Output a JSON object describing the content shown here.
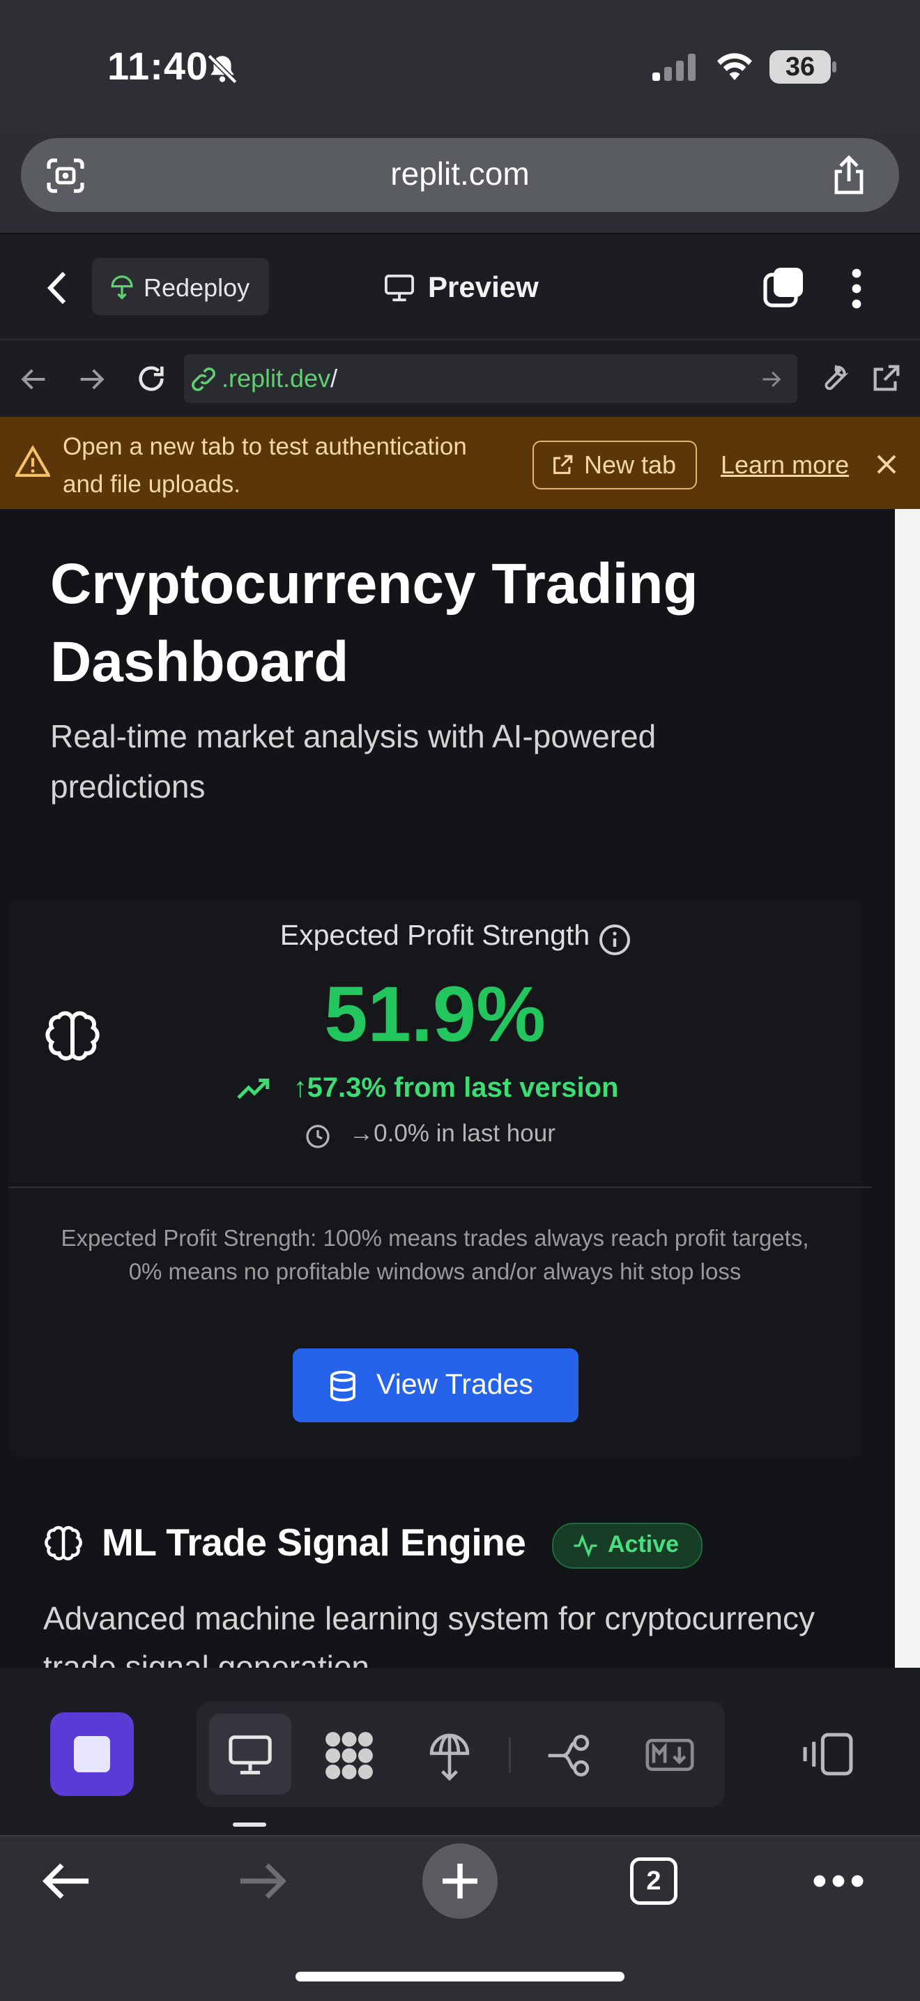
{
  "status_bar": {
    "time": "11:40",
    "battery": "36"
  },
  "browser": {
    "url": "replit.com",
    "tabs_count": "2"
  },
  "replit_header": {
    "redeploy": "Redeploy",
    "preview": "Preview"
  },
  "webview_nav": {
    "address": ".replit.dev",
    "address_slash": "/"
  },
  "banner": {
    "message": "Open a new tab to test authentication and file uploads.",
    "new_tab": "New tab",
    "learn_more": "Learn more"
  },
  "page": {
    "title": "Cryptocurrency Trading Dashboard",
    "subtitle": "Real-time market analysis with AI-powered predictions"
  },
  "profit_card": {
    "label": "Expected Profit Strength",
    "value": "51.9%",
    "change": "↑57.3% from last version",
    "hour_change": "→0.0% in last hour",
    "description": "Expected Profit Strength: 100% means trades always reach profit targets, 0% means no profitable windows and/or always hit stop loss",
    "button": "View Trades"
  },
  "ml_engine": {
    "title": "ML Trade Signal Engine",
    "badge": "Active",
    "description": "Advanced machine learning system for cryptocurrency trade signal generation"
  },
  "colors": {
    "accent_green": "#22c55e",
    "primary_blue": "#2563eb",
    "replit_purple": "#5b3bd6",
    "banner_bg": "#5b3608"
  }
}
